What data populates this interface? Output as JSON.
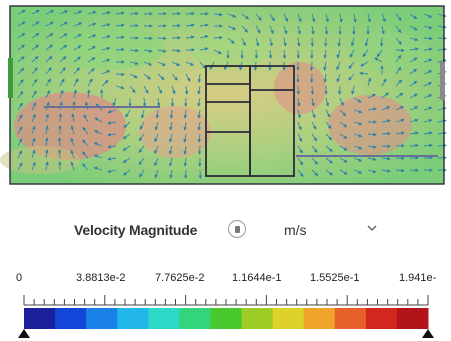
{
  "legend": {
    "title": "Velocity Magnitude",
    "unit": "m/s",
    "ticks": [
      "0",
      "3.8813e-2",
      "7.7625e-2",
      "1.1644e-1",
      "1.5525e-1",
      "1.941e-"
    ],
    "colormap": [
      "#1a1f9a",
      "#1146d9",
      "#1a82e6",
      "#22b7e9",
      "#2cd8c7",
      "#34d47d",
      "#49c82d",
      "#9dcc26",
      "#ddd229",
      "#f0a52a",
      "#e8612a",
      "#d2271f",
      "#b3131b"
    ]
  },
  "icons": {
    "info": "info-circle-icon",
    "dropdown": "chevron-down-icon",
    "min_marker": "triangle-marker-icon",
    "max_marker": "triangle-marker-icon"
  }
}
